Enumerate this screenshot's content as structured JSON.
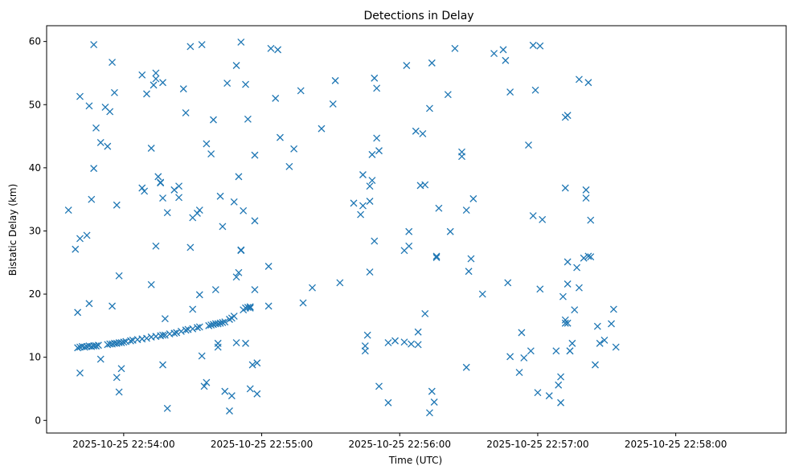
{
  "chart_data": {
    "type": "scatter",
    "title": "Detections in Delay",
    "xlabel": "Time (UTC)",
    "ylabel": "Bistatic Delay (km)",
    "x_ticks": [
      "2025-10-25 22:54:00",
      "2025-10-25 22:55:00",
      "2025-10-25 22:56:00",
      "2025-10-25 22:57:00",
      "2025-10-25 22:58:00"
    ],
    "y_ticks": [
      0,
      10,
      20,
      30,
      40,
      50,
      60
    ],
    "xlim_seconds_from_first_tick": [
      -33.5,
      288
    ],
    "ylim": [
      -2,
      62.5
    ],
    "grid": false,
    "marker": "x",
    "color": "#1f77b4",
    "series": [
      {
        "points": [
          [
            -24,
            33.3
          ],
          [
            -21,
            27.1
          ],
          [
            -19,
            28.8
          ],
          [
            -16,
            29.3
          ],
          [
            -19,
            51.3
          ],
          [
            -15,
            49.8
          ],
          [
            -13,
            59.5
          ],
          [
            -12,
            46.3
          ],
          [
            -14,
            35.0
          ],
          [
            -13,
            39.9
          ],
          [
            -10,
            44.0
          ],
          [
            -7,
            43.4
          ],
          [
            -6,
            48.9
          ],
          [
            -5,
            56.7
          ],
          [
            -4,
            51.9
          ],
          [
            -3,
            34.1
          ],
          [
            -2,
            22.9
          ],
          [
            -20,
            17.1
          ],
          [
            -15,
            18.5
          ],
          [
            -5,
            18.1
          ],
          [
            -8,
            49.6
          ],
          [
            -10,
            9.7
          ],
          [
            -3,
            6.8
          ],
          [
            -2,
            4.5
          ],
          [
            -1,
            8.2
          ],
          [
            -19,
            7.5
          ],
          [
            -20,
            11.5
          ],
          [
            -19,
            11.6
          ],
          [
            -18,
            11.7
          ],
          [
            -17,
            11.6
          ],
          [
            -16,
            11.7
          ],
          [
            -15,
            11.8
          ],
          [
            -14,
            11.7
          ],
          [
            -13,
            11.8
          ],
          [
            -12,
            11.8
          ],
          [
            -11,
            11.9
          ],
          [
            -7,
            12.0
          ],
          [
            -6,
            12.1
          ],
          [
            -5,
            12.1
          ],
          [
            -4,
            12.2
          ],
          [
            -3,
            12.2
          ],
          [
            -2,
            12.3
          ],
          [
            -1,
            12.3
          ],
          [
            0,
            12.4
          ],
          [
            1,
            12.5
          ],
          [
            3,
            12.6
          ],
          [
            4,
            12.7
          ],
          [
            6,
            12.8
          ],
          [
            8,
            12.9
          ],
          [
            10,
            13.0
          ],
          [
            12,
            13.2
          ],
          [
            14,
            13.3
          ],
          [
            16,
            13.4
          ],
          [
            17,
            13.5
          ],
          [
            18,
            13.5
          ],
          [
            20,
            13.7
          ],
          [
            22,
            13.8
          ],
          [
            23,
            13.9
          ],
          [
            25,
            14.1
          ],
          [
            27,
            14.3
          ],
          [
            28,
            14.4
          ],
          [
            30,
            14.5
          ],
          [
            32,
            14.7
          ],
          [
            33,
            14.8
          ],
          [
            37,
            15.0
          ],
          [
            38,
            15.1
          ],
          [
            39,
            15.2
          ],
          [
            40,
            15.3
          ],
          [
            41,
            15.3
          ],
          [
            42,
            15.4
          ],
          [
            43,
            15.5
          ],
          [
            44,
            15.6
          ],
          [
            46,
            16.0
          ],
          [
            47,
            16.2
          ],
          [
            52,
            17.5
          ],
          [
            53,
            17.8
          ],
          [
            54,
            17.9
          ],
          [
            55,
            18.0
          ],
          [
            -13,
            11.8
          ],
          [
            -12,
            11.8
          ],
          [
            8,
            54.7
          ],
          [
            10,
            51.7
          ],
          [
            12,
            43.1
          ],
          [
            13,
            53.1
          ],
          [
            14,
            55.0
          ],
          [
            14,
            54.1
          ],
          [
            17,
            53.5
          ],
          [
            14,
            27.6
          ],
          [
            15,
            38.6
          ],
          [
            16,
            37.7
          ],
          [
            16,
            37.6
          ],
          [
            17,
            35.2
          ],
          [
            19,
            32.9
          ],
          [
            8,
            36.8
          ],
          [
            9,
            36.3
          ],
          [
            30,
            32.1
          ],
          [
            32,
            32.8
          ],
          [
            33,
            33.3
          ],
          [
            22,
            36.5
          ],
          [
            24,
            35.3
          ],
          [
            24,
            37.1
          ],
          [
            26,
            52.5
          ],
          [
            27,
            48.7
          ],
          [
            29,
            59.2
          ],
          [
            34,
            59.5
          ],
          [
            36,
            43.8
          ],
          [
            38,
            42.2
          ],
          [
            39,
            47.6
          ],
          [
            42,
            35.5
          ],
          [
            43,
            30.7
          ],
          [
            45,
            53.4
          ],
          [
            48,
            34.6
          ],
          [
            49,
            56.2
          ],
          [
            50,
            38.6
          ],
          [
            51,
            59.9
          ],
          [
            52,
            33.2
          ],
          [
            53,
            53.2
          ],
          [
            54,
            47.7
          ],
          [
            29,
            27.4
          ],
          [
            30,
            17.6
          ],
          [
            33,
            19.9
          ],
          [
            35,
            5.4
          ],
          [
            36,
            6.0
          ],
          [
            34,
            10.2
          ],
          [
            12,
            21.5
          ],
          [
            18,
            16.1
          ],
          [
            17,
            8.8
          ],
          [
            19,
            1.9
          ],
          [
            40,
            20.7
          ],
          [
            41,
            11.6
          ],
          [
            41,
            12.2
          ],
          [
            44,
            4.6
          ],
          [
            46,
            1.5
          ],
          [
            47,
            3.9
          ],
          [
            48,
            16.5
          ],
          [
            49,
            12.3
          ],
          [
            49,
            22.7
          ],
          [
            50,
            23.4
          ],
          [
            51,
            27.0
          ],
          [
            51,
            26.9
          ],
          [
            53,
            12.2
          ],
          [
            55,
            5.0
          ],
          [
            56,
            8.8
          ],
          [
            58,
            9.1
          ],
          [
            58,
            4.2
          ],
          [
            57,
            20.7
          ],
          [
            57,
            31.6
          ],
          [
            57,
            42.0
          ],
          [
            55,
            17.8
          ],
          [
            63,
            18.1
          ],
          [
            63,
            24.4
          ],
          [
            64,
            58.9
          ],
          [
            67,
            58.7
          ],
          [
            66,
            51.0
          ],
          [
            68,
            44.8
          ],
          [
            72,
            40.2
          ],
          [
            74,
            43.0
          ],
          [
            77,
            52.2
          ],
          [
            78,
            18.6
          ],
          [
            82,
            21.0
          ],
          [
            86,
            46.2
          ],
          [
            91,
            50.1
          ],
          [
            92,
            53.8
          ],
          [
            94,
            21.8
          ],
          [
            100,
            34.4
          ],
          [
            103,
            32.6
          ],
          [
            104,
            34.0
          ],
          [
            104,
            38.9
          ],
          [
            105,
            11.0
          ],
          [
            105,
            11.8
          ],
          [
            106,
            13.5
          ],
          [
            107,
            23.5
          ],
          [
            107,
            34.7
          ],
          [
            107,
            37.1
          ],
          [
            108,
            42.1
          ],
          [
            108,
            38.0
          ],
          [
            109,
            54.2
          ],
          [
            110,
            52.6
          ],
          [
            109,
            28.4
          ],
          [
            111,
            42.7
          ],
          [
            110,
            44.7
          ],
          [
            111,
            5.4
          ],
          [
            115,
            12.3
          ],
          [
            115,
            2.8
          ],
          [
            118,
            12.6
          ],
          [
            122,
            12.4
          ],
          [
            122,
            26.9
          ],
          [
            123,
            56.2
          ],
          [
            124,
            27.6
          ],
          [
            124,
            29.9
          ],
          [
            125,
            12.1
          ],
          [
            127,
            45.8
          ],
          [
            128,
            14.0
          ],
          [
            128,
            12.0
          ],
          [
            129,
            37.2
          ],
          [
            131,
            37.3
          ],
          [
            130,
            45.4
          ],
          [
            131,
            16.9
          ],
          [
            133,
            49.4
          ],
          [
            134,
            56.6
          ],
          [
            134,
            4.6
          ],
          [
            133,
            1.2
          ],
          [
            135,
            2.9
          ],
          [
            136,
            26.0
          ],
          [
            136,
            25.8
          ],
          [
            137,
            33.6
          ],
          [
            141,
            51.6
          ],
          [
            142,
            29.9
          ],
          [
            144,
            58.9
          ],
          [
            147,
            42.5
          ],
          [
            147,
            41.8
          ],
          [
            149,
            8.4
          ],
          [
            149,
            33.3
          ],
          [
            150,
            23.6
          ],
          [
            151,
            25.6
          ],
          [
            152,
            35.1
          ],
          [
            156,
            20.0
          ],
          [
            161,
            58.1
          ],
          [
            165,
            58.7
          ],
          [
            166,
            57.0
          ],
          [
            167,
            21.8
          ],
          [
            168,
            52.0
          ],
          [
            168,
            10.1
          ],
          [
            172,
            7.6
          ],
          [
            173,
            13.9
          ],
          [
            174,
            9.9
          ],
          [
            176,
            43.6
          ],
          [
            177,
            11.0
          ],
          [
            178,
            59.4
          ],
          [
            178,
            32.4
          ],
          [
            179,
            52.3
          ],
          [
            180,
            4.4
          ],
          [
            181,
            59.3
          ],
          [
            181,
            20.8
          ],
          [
            182,
            31.8
          ],
          [
            185,
            3.9
          ],
          [
            188,
            11.0
          ],
          [
            189,
            5.6
          ],
          [
            190,
            2.8
          ],
          [
            190,
            6.9
          ],
          [
            191,
            19.6
          ],
          [
            192,
            48.0
          ],
          [
            193,
            48.3
          ],
          [
            192,
            36.8
          ],
          [
            193,
            21.6
          ],
          [
            192,
            15.9
          ],
          [
            193,
            15.4
          ],
          [
            193,
            25.1
          ],
          [
            194,
            11.0
          ],
          [
            195,
            12.2
          ],
          [
            196,
            17.5
          ],
          [
            197,
            24.2
          ],
          [
            198,
            21.0
          ],
          [
            198,
            54.0
          ],
          [
            200,
            25.7
          ],
          [
            202,
            26.0
          ],
          [
            201,
            35.2
          ],
          [
            201,
            36.5
          ],
          [
            202,
            53.5
          ],
          [
            203,
            25.9
          ],
          [
            203,
            31.7
          ],
          [
            205,
            8.8
          ],
          [
            206,
            14.9
          ],
          [
            207,
            12.2
          ],
          [
            209,
            12.7
          ],
          [
            212,
            15.3
          ],
          [
            213,
            17.6
          ],
          [
            214,
            11.6
          ],
          [
            194,
            11.0
          ],
          [
            192,
            15.4
          ]
        ]
      }
    ]
  }
}
